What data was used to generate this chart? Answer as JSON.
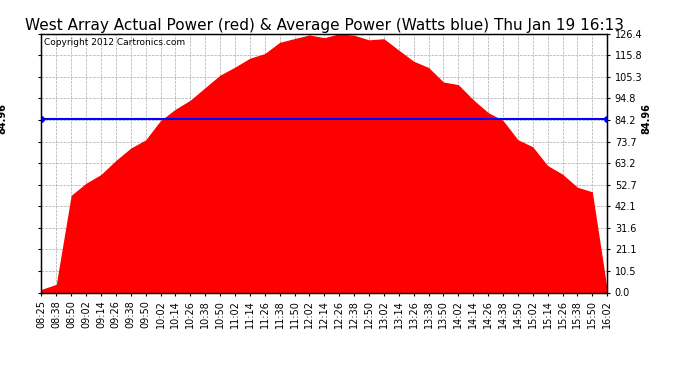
{
  "title": "West Array Actual Power (red) & Average Power (Watts blue) Thu Jan 19 16:13",
  "copyright": "Copyright 2012 Cartronics.com",
  "average_power": 84.96,
  "y_max": 126.4,
  "y_ticks": [
    0.0,
    10.5,
    21.1,
    31.6,
    42.1,
    52.7,
    63.2,
    73.7,
    84.2,
    94.8,
    105.3,
    115.8,
    126.4
  ],
  "y_tick_labels": [
    "0.0",
    "10.5",
    "21.1",
    "31.6",
    "42.1",
    "52.7",
    "63.2",
    "73.7",
    "84.2",
    "94.8",
    "105.3",
    "115.8",
    "126.4"
  ],
  "x_labels": [
    "08:25",
    "08:38",
    "08:50",
    "09:02",
    "09:14",
    "09:26",
    "09:38",
    "09:50",
    "10:02",
    "10:14",
    "10:26",
    "10:38",
    "10:50",
    "11:02",
    "11:14",
    "11:26",
    "11:38",
    "11:50",
    "12:02",
    "12:14",
    "12:26",
    "12:38",
    "12:50",
    "13:02",
    "13:14",
    "13:26",
    "13:38",
    "13:50",
    "14:02",
    "14:14",
    "14:26",
    "14:38",
    "14:50",
    "15:02",
    "15:14",
    "15:26",
    "15:38",
    "15:50",
    "16:02"
  ],
  "fill_color": "#FF0000",
  "line_color": "#0000FF",
  "background_color": "#FFFFFF",
  "grid_color": "#AAAAAA",
  "title_fontsize": 11,
  "copyright_fontsize": 6.5,
  "tick_fontsize": 7,
  "avg_label": "84.96",
  "avg_label_fontsize": 7
}
